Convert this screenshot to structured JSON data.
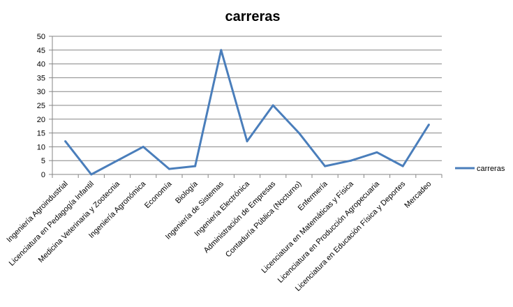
{
  "chart_data": {
    "type": "line",
    "title": "carreras",
    "xlabel": "",
    "ylabel": "",
    "ylim": [
      0,
      50
    ],
    "yticks": [
      0,
      5,
      10,
      15,
      20,
      25,
      30,
      35,
      40,
      45,
      50
    ],
    "grid": true,
    "legend_position": "right",
    "categories": [
      "Ingeniería Agroindustrial",
      "Licenciatura en Pedagogía Infantil",
      "Medicina Veterinaria y Zootecnia",
      "Ingeniería Agronómica",
      "Economía",
      "Biología",
      "Ingeniería de Sistemas",
      "Ingeniería Electrónica",
      "Administración de Empresas",
      "Contaduría Pública (Nocturno)",
      "Enfermería",
      "Licenciatura en Matemáticas y Física",
      "Licenciatura en Producción Agropecuaria",
      "Licenciatura en Educación Física y Deportes",
      "Mercadeo"
    ],
    "series": [
      {
        "name": "carreras",
        "color": "#4a7ebb",
        "values": [
          12,
          0,
          5,
          10,
          2,
          3,
          45,
          12,
          25,
          15,
          3,
          5,
          8,
          3,
          18
        ]
      }
    ]
  }
}
